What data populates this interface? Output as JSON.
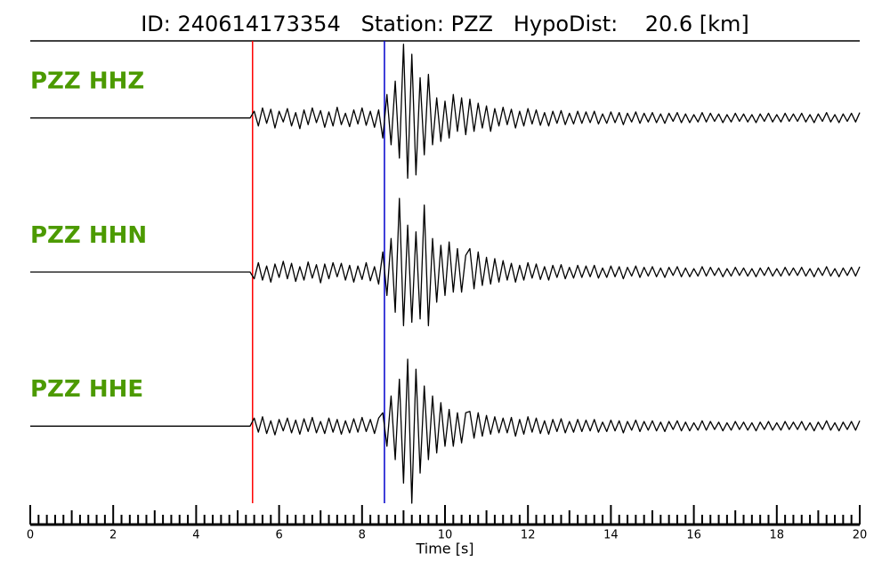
{
  "chart_data": {
    "type": "line",
    "title": "ID: 240614173354   Station: PZZ   HypoDist:    20.6 [km]",
    "xlabel": "Time [s]",
    "xlim": [
      0,
      20
    ],
    "xticks": [
      0,
      2,
      4,
      6,
      8,
      10,
      12,
      14,
      16,
      18,
      20
    ],
    "minor_divisions": 10,
    "ylim": [
      -1.15,
      1.15
    ],
    "label_color": "#4c9a00",
    "vlines": [
      {
        "value": 5.36,
        "color": "#ff0000"
      },
      {
        "value": 8.54,
        "color": "#0000cc"
      }
    ],
    "x": [
      0,
      0.1,
      0.2,
      0.3,
      0.4,
      0.5,
      0.6,
      0.7,
      0.8,
      0.9,
      1,
      1.1,
      1.2,
      1.3,
      1.4,
      1.5,
      1.6,
      1.7,
      1.8,
      1.9,
      2,
      2.1,
      2.2,
      2.3,
      2.4,
      2.5,
      2.6,
      2.7,
      2.8,
      2.9,
      3,
      3.1,
      3.2,
      3.3,
      3.4,
      3.5,
      3.6,
      3.7,
      3.8,
      3.9,
      4,
      4.1,
      4.2,
      4.3,
      4.4,
      4.5,
      4.6,
      4.7,
      4.8,
      4.9,
      5,
      5.1,
      5.2,
      5.3,
      5.4,
      5.5,
      5.6,
      5.7,
      5.8,
      5.9,
      6,
      6.1,
      6.2,
      6.3,
      6.4,
      6.5,
      6.6,
      6.7,
      6.8,
      6.9,
      7,
      7.1,
      7.2,
      7.3,
      7.4,
      7.5,
      7.6,
      7.7,
      7.8,
      7.9,
      8,
      8.1,
      8.2,
      8.3,
      8.4,
      8.5,
      8.6,
      8.7,
      8.8,
      8.9,
      9,
      9.1,
      9.2,
      9.3,
      9.4,
      9.5,
      9.6,
      9.7,
      9.8,
      9.9,
      10,
      10.1,
      10.2,
      10.3,
      10.4,
      10.5,
      10.6,
      10.7,
      10.8,
      10.9,
      11,
      11.1,
      11.2,
      11.3,
      11.4,
      11.5,
      11.6,
      11.7,
      11.8,
      11.9,
      12,
      12.1,
      12.2,
      12.3,
      12.4,
      12.5,
      12.6,
      12.7,
      12.8,
      12.9,
      13,
      13.1,
      13.2,
      13.3,
      13.4,
      13.5,
      13.6,
      13.7,
      13.8,
      13.9,
      14,
      14.1,
      14.2,
      14.3,
      14.4,
      14.5,
      14.6,
      14.7,
      14.8,
      14.9,
      15,
      15.1,
      15.2,
      15.3,
      15.4,
      15.5,
      15.6,
      15.7,
      15.8,
      15.9,
      16,
      16.1,
      16.2,
      16.3,
      16.4,
      16.5,
      16.6,
      16.7,
      16.8,
      16.9,
      17,
      17.1,
      17.2,
      17.3,
      17.4,
      17.5,
      17.6,
      17.7,
      17.8,
      17.9,
      18,
      18.1,
      18.2,
      18.3,
      18.4,
      18.5,
      18.6,
      18.7,
      18.8,
      18.9,
      19,
      19.1,
      19.2,
      19.3,
      19.4,
      19.5,
      19.6,
      19.7,
      19.8,
      19.9,
      20
    ],
    "series": [
      {
        "name": "PZZ HHZ",
        "color": "#000000",
        "values": [
          0,
          0,
          0,
          0,
          0,
          0,
          0,
          0,
          0,
          0,
          0,
          0,
          0,
          0,
          0,
          0,
          0,
          0,
          0,
          0,
          0,
          0,
          0,
          0,
          0,
          0,
          0,
          0,
          0,
          0,
          0,
          0,
          0,
          0,
          0,
          0,
          0,
          0,
          0,
          0,
          0,
          0,
          0,
          0,
          0,
          0,
          0,
          0,
          0,
          0,
          0,
          0,
          0,
          0,
          0.1,
          -0.12,
          0.15,
          -0.08,
          0.13,
          -0.15,
          0.1,
          -0.06,
          0.14,
          -0.12,
          0.08,
          -0.16,
          0.12,
          -0.1,
          0.15,
          -0.07,
          0.11,
          -0.14,
          0.09,
          -0.12,
          0.16,
          -0.1,
          0.07,
          -0.13,
          0.12,
          -0.09,
          0.15,
          -0.11,
          0.1,
          -0.14,
          0.12,
          -0.3,
          0.35,
          -0.4,
          0.55,
          -0.6,
          1.1,
          -0.9,
          0.95,
          -0.85,
          0.6,
          -0.55,
          0.65,
          -0.4,
          0.3,
          -0.35,
          0.25,
          -0.3,
          0.35,
          -0.2,
          0.3,
          -0.25,
          0.28,
          -0.2,
          0.22,
          -0.15,
          0.18,
          -0.2,
          0.14,
          -0.12,
          0.16,
          -0.1,
          0.13,
          -0.15,
          0.1,
          -0.12,
          0.14,
          -0.09,
          0.12,
          -0.11,
          0.08,
          -0.12,
          0.1,
          -0.08,
          0.11,
          -0.1,
          0.07,
          -0.09,
          0.1,
          -0.08,
          0.09,
          -0.07,
          0.1,
          -0.09,
          0.06,
          -0.08,
          0.09,
          -0.07,
          0.08,
          -0.1,
          0.07,
          -0.06,
          0.09,
          -0.08,
          0.07,
          -0.06,
          0.08,
          -0.07,
          0.06,
          -0.08,
          0.07,
          -0.05,
          0.08,
          -0.07,
          0.06,
          -0.07,
          0.05,
          -0.06,
          0.08,
          -0.06,
          0.07,
          -0.05,
          0.06,
          -0.07,
          0.05,
          -0.06,
          0.07,
          -0.05,
          0.06,
          -0.06,
          0.05,
          -0.07,
          0.06,
          -0.05,
          0.07,
          -0.06,
          0.05,
          -0.06,
          0.07,
          -0.05,
          0.06,
          -0.05,
          0.07,
          -0.06,
          0.05,
          -0.07,
          0.06,
          -0.05,
          0.08,
          -0.06,
          0.05,
          -0.07,
          0.06,
          -0.05,
          0.07,
          -0.06,
          0.08
        ]
      },
      {
        "name": "PZZ HHN",
        "color": "#000000",
        "values": [
          0,
          0,
          0,
          0,
          0,
          0,
          0,
          0,
          0,
          0,
          0,
          0,
          0,
          0,
          0,
          0,
          0,
          0,
          0,
          0,
          0,
          0,
          0,
          0,
          0,
          0,
          0,
          0,
          0,
          0,
          0,
          0,
          0,
          0,
          0,
          0,
          0,
          0,
          0,
          0,
          0,
          0,
          0,
          0,
          0,
          0,
          0,
          0,
          0,
          0,
          0,
          0,
          0,
          0,
          -0.1,
          0.14,
          -0.12,
          0.09,
          -0.15,
          0.12,
          -0.08,
          0.16,
          -0.1,
          0.13,
          -0.14,
          0.08,
          -0.12,
          0.15,
          -0.09,
          0.11,
          -0.16,
          0.12,
          -0.1,
          0.14,
          -0.07,
          0.13,
          -0.12,
          0.1,
          -0.15,
          0.09,
          -0.11,
          0.14,
          -0.13,
          0.08,
          -0.18,
          0.3,
          -0.35,
          0.5,
          -0.6,
          1.1,
          -0.8,
          0.7,
          -0.75,
          0.6,
          -0.7,
          1.0,
          -0.8,
          0.5,
          -0.45,
          0.4,
          -0.35,
          0.45,
          -0.3,
          0.35,
          -0.3,
          0.25,
          0.35,
          -0.25,
          0.3,
          -0.2,
          0.22,
          -0.18,
          0.2,
          -0.15,
          0.17,
          -0.12,
          0.13,
          -0.15,
          0.1,
          -0.12,
          0.14,
          -0.09,
          0.12,
          -0.11,
          0.08,
          -0.12,
          0.1,
          -0.08,
          0.11,
          -0.1,
          0.07,
          -0.09,
          0.1,
          -0.08,
          0.09,
          -0.07,
          0.1,
          -0.09,
          0.06,
          -0.08,
          0.09,
          -0.07,
          0.08,
          -0.1,
          0.07,
          -0.06,
          0.09,
          -0.08,
          0.07,
          -0.06,
          0.08,
          -0.07,
          0.06,
          -0.08,
          0.07,
          -0.05,
          0.08,
          -0.07,
          0.06,
          -0.07,
          0.05,
          -0.06,
          0.08,
          -0.06,
          0.07,
          -0.05,
          0.06,
          -0.07,
          0.05,
          -0.06,
          0.07,
          -0.05,
          0.06,
          -0.06,
          0.05,
          -0.07,
          0.06,
          -0.05,
          0.07,
          -0.06,
          0.05,
          -0.06,
          0.07,
          -0.05,
          0.06,
          -0.05,
          0.07,
          -0.06,
          0.05,
          -0.07,
          0.06,
          -0.05,
          0.08,
          -0.06,
          0.05,
          -0.07,
          0.06,
          -0.05,
          0.07,
          -0.06,
          0.08
        ]
      },
      {
        "name": "PZZ HHE",
        "color": "#000000",
        "values": [
          0,
          0,
          0,
          0,
          0,
          0,
          0,
          0,
          0,
          0,
          0,
          0,
          0,
          0,
          0,
          0,
          0,
          0,
          0,
          0,
          0,
          0,
          0,
          0,
          0,
          0,
          0,
          0,
          0,
          0,
          0,
          0,
          0,
          0,
          0,
          0,
          0,
          0,
          0,
          0,
          0,
          0,
          0,
          0,
          0,
          0,
          0,
          0,
          0,
          0,
          0,
          0,
          0,
          0,
          0.12,
          -0.09,
          0.14,
          -0.11,
          0.08,
          -0.13,
          0.1,
          -0.07,
          0.12,
          -0.1,
          0.09,
          -0.12,
          0.11,
          -0.08,
          0.13,
          -0.1,
          0.07,
          -0.11,
          0.12,
          -0.09,
          0.1,
          -0.12,
          0.08,
          -0.1,
          0.11,
          -0.09,
          0.13,
          -0.08,
          0.1,
          -0.11,
          0.12,
          0.2,
          -0.3,
          0.45,
          -0.5,
          0.7,
          -0.85,
          1.0,
          -1.15,
          0.85,
          -0.7,
          0.6,
          -0.5,
          0.45,
          -0.4,
          0.35,
          -0.3,
          0.25,
          -0.3,
          0.2,
          -0.25,
          0.2,
          0.22,
          -0.18,
          0.2,
          -0.15,
          0.16,
          -0.12,
          0.14,
          -0.1,
          0.12,
          -0.1,
          0.13,
          -0.15,
          0.1,
          -0.12,
          0.14,
          -0.09,
          0.12,
          -0.11,
          0.08,
          -0.12,
          0.1,
          -0.08,
          0.11,
          -0.1,
          0.07,
          -0.09,
          0.1,
          -0.08,
          0.09,
          -0.07,
          0.1,
          -0.09,
          0.06,
          -0.08,
          0.09,
          -0.07,
          0.08,
          -0.1,
          0.07,
          -0.06,
          0.09,
          -0.08,
          0.07,
          -0.06,
          0.08,
          -0.07,
          0.06,
          -0.08,
          0.07,
          -0.05,
          0.08,
          -0.07,
          0.06,
          -0.07,
          0.05,
          -0.06,
          0.08,
          -0.06,
          0.07,
          -0.05,
          0.06,
          -0.07,
          0.05,
          -0.06,
          0.07,
          -0.05,
          0.06,
          -0.06,
          0.05,
          -0.07,
          0.06,
          -0.05,
          0.07,
          -0.06,
          0.05,
          -0.06,
          0.07,
          -0.05,
          0.06,
          -0.05,
          0.07,
          -0.06,
          0.05,
          -0.07,
          0.06,
          -0.05,
          0.08,
          -0.06,
          0.05,
          -0.07,
          0.06,
          -0.05,
          0.07,
          -0.06,
          0.08
        ]
      }
    ]
  }
}
